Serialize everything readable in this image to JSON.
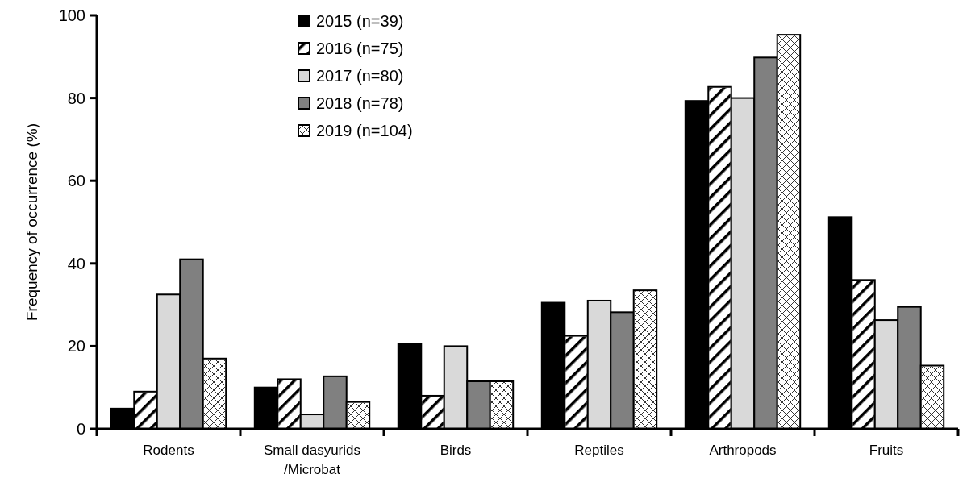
{
  "chart_data": {
    "type": "bar",
    "ylabel": "Frequency of occurrence (%)",
    "categories": [
      "Rodents",
      "Small dasyurids\n/Microbat",
      "Birds",
      "Reptiles",
      "Arthropods",
      "Fruits"
    ],
    "series": [
      {
        "name": "2015 (n=39)",
        "color": "#000000",
        "values": [
          4.9,
          10,
          20.5,
          30.5,
          79.3,
          51.2
        ]
      },
      {
        "name": "2016 (n=75)",
        "color": "#ffffff",
        "values": [
          9,
          12,
          8,
          22.5,
          82.7,
          36
        ]
      },
      {
        "name": "2017 (n=80)",
        "color": "#d9d9d9",
        "values": [
          32.5,
          3.5,
          20,
          31,
          80,
          26.3
        ]
      },
      {
        "name": "2018 (n=78)",
        "color": "#808080",
        "values": [
          41,
          12.7,
          11.5,
          28.2,
          89.8,
          29.5
        ]
      },
      {
        "name": "2019 (n=104)",
        "color": "#ffffff",
        "values": [
          17,
          6.5,
          11.5,
          33.5,
          95.3,
          15.3
        ]
      }
    ],
    "ylim": [
      0,
      100
    ],
    "yticks": [
      0,
      20,
      40,
      60,
      80,
      100
    ],
    "legend": "top"
  }
}
